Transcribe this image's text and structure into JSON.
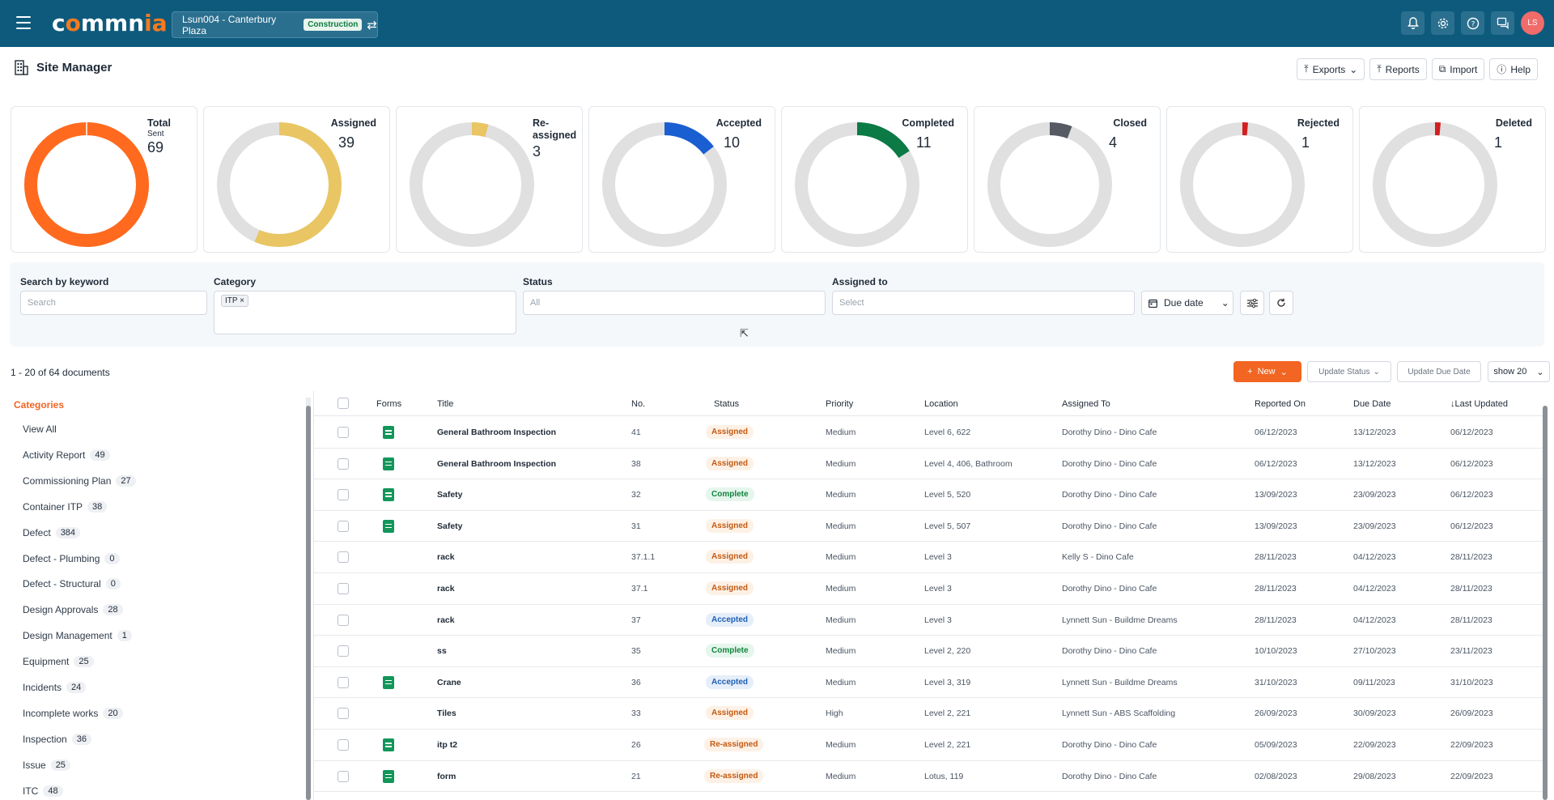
{
  "header": {
    "logo_text": "commnia",
    "project": "Lsun004 - Canterbury Plaza",
    "project_badge": "Construction",
    "avatar_initials": "LS"
  },
  "page": {
    "title": "Site Manager",
    "actions": {
      "exports": "Exports",
      "reports": "Reports",
      "import": "Import",
      "help": "Help"
    }
  },
  "stats": [
    {
      "label": "Total",
      "sub": "Sent",
      "value": "69",
      "fraction": 1.0,
      "color": "#ff6a1f"
    },
    {
      "label": "Assigned",
      "value": "39",
      "fraction": 0.565,
      "color": "#e9c663"
    },
    {
      "label": "Re-assigned",
      "value": "3",
      "fraction": 0.043,
      "color": "#e9c663"
    },
    {
      "label": "Accepted",
      "value": "10",
      "fraction": 0.145,
      "color": "#1a5fd1"
    },
    {
      "label": "Completed",
      "value": "11",
      "fraction": 0.159,
      "color": "#0c7a45"
    },
    {
      "label": "Closed",
      "value": "4",
      "fraction": 0.058,
      "color": "#555a63"
    },
    {
      "label": "Rejected",
      "value": "1",
      "fraction": 0.0145,
      "color": "#d21f1f"
    },
    {
      "label": "Deleted",
      "value": "1",
      "fraction": 0.0145,
      "color": "#d21f1f"
    }
  ],
  "filters": {
    "keyword_label": "Search by keyword",
    "keyword_placeholder": "Search",
    "category_label": "Category",
    "category_chip": "ITP",
    "status_label": "Status",
    "status_placeholder": "All",
    "assigned_label": "Assigned to",
    "assigned_placeholder": "Select",
    "due_date": "Due date"
  },
  "toolbar": {
    "doc_count": "1 - 20 of 64 documents",
    "new": "New",
    "update_status": "Update Status",
    "update_due": "Update Due Date",
    "show": "show 20"
  },
  "categories": {
    "heading": "Categories",
    "items": [
      {
        "name": "View All",
        "count": ""
      },
      {
        "name": "Activity Report",
        "count": "49"
      },
      {
        "name": "Commissioning Plan",
        "count": "27"
      },
      {
        "name": "Container ITP",
        "count": "38"
      },
      {
        "name": "Defect",
        "count": "384"
      },
      {
        "name": "Defect - Plumbing",
        "count": "0"
      },
      {
        "name": "Defect - Structural",
        "count": "0"
      },
      {
        "name": "Design Approvals",
        "count": "28"
      },
      {
        "name": "Design Management",
        "count": "1"
      },
      {
        "name": "Equipment",
        "count": "25"
      },
      {
        "name": "Incidents",
        "count": "24"
      },
      {
        "name": "Incomplete works",
        "count": "20"
      },
      {
        "name": "Inspection",
        "count": "36"
      },
      {
        "name": "Issue",
        "count": "25"
      },
      {
        "name": "ITC",
        "count": "48"
      }
    ]
  },
  "table": {
    "columns": [
      "Forms",
      "Title",
      "No.",
      "Status",
      "Priority",
      "Location",
      "Assigned To",
      "Reported On",
      "Due Date",
      "↓Last Updated"
    ],
    "rows": [
      {
        "form": true,
        "title": "General Bathroom Inspection",
        "no": "41",
        "status": "Assigned",
        "priority": "Medium",
        "location": "Level 6, 622",
        "assigned": "Dorothy Dino - Dino Cafe",
        "reported": "06/12/2023",
        "due": "13/12/2023",
        "updated": "06/12/2023"
      },
      {
        "form": true,
        "title": "General Bathroom Inspection",
        "no": "38",
        "status": "Assigned",
        "priority": "Medium",
        "location": "Level 4, 406, Bathroom",
        "assigned": "Dorothy Dino - Dino Cafe",
        "reported": "06/12/2023",
        "due": "13/12/2023",
        "updated": "06/12/2023"
      },
      {
        "form": true,
        "title": "Safety",
        "no": "32",
        "status": "Complete",
        "priority": "Medium",
        "location": "Level 5, 520",
        "assigned": "Dorothy Dino - Dino Cafe",
        "reported": "13/09/2023",
        "due": "23/09/2023",
        "updated": "06/12/2023"
      },
      {
        "form": true,
        "title": "Safety",
        "no": "31",
        "status": "Assigned",
        "priority": "Medium",
        "location": "Level 5, 507",
        "assigned": "Dorothy Dino - Dino Cafe",
        "reported": "13/09/2023",
        "due": "23/09/2023",
        "updated": "06/12/2023"
      },
      {
        "form": false,
        "title": "rack",
        "no": "37.1.1",
        "status": "Assigned",
        "priority": "Medium",
        "location": "Level 3",
        "assigned": "Kelly S - Dino Cafe",
        "reported": "28/11/2023",
        "due": "04/12/2023",
        "updated": "28/11/2023"
      },
      {
        "form": false,
        "title": "rack",
        "no": "37.1",
        "status": "Assigned",
        "priority": "Medium",
        "location": "Level 3",
        "assigned": "Dorothy Dino - Dino Cafe",
        "reported": "28/11/2023",
        "due": "04/12/2023",
        "updated": "28/11/2023"
      },
      {
        "form": false,
        "title": "rack",
        "no": "37",
        "status": "Accepted",
        "priority": "Medium",
        "location": "Level 3",
        "assigned": "Lynnett Sun - Buildme Dreams",
        "reported": "28/11/2023",
        "due": "04/12/2023",
        "updated": "28/11/2023"
      },
      {
        "form": false,
        "title": "ss",
        "no": "35",
        "status": "Complete",
        "priority": "Medium",
        "location": "Level 2, 220",
        "assigned": "Dorothy Dino - Dino Cafe",
        "reported": "10/10/2023",
        "due": "27/10/2023",
        "updated": "23/11/2023"
      },
      {
        "form": true,
        "title": "Crane",
        "no": "36",
        "status": "Accepted",
        "priority": "Medium",
        "location": "Level 3, 319",
        "assigned": "Lynnett Sun - Buildme Dreams",
        "reported": "31/10/2023",
        "due": "09/11/2023",
        "updated": "31/10/2023"
      },
      {
        "form": false,
        "title": "Tiles",
        "no": "33",
        "status": "Assigned",
        "priority": "High",
        "location": "Level 2, 221",
        "assigned": "Lynnett Sun - ABS Scaffolding",
        "reported": "26/09/2023",
        "due": "30/09/2023",
        "updated": "26/09/2023"
      },
      {
        "form": true,
        "title": "itp t2",
        "no": "26",
        "status": "Re-assigned",
        "priority": "Medium",
        "location": "Level 2, 221",
        "assigned": "Dorothy Dino - Dino Cafe",
        "reported": "05/09/2023",
        "due": "22/09/2023",
        "updated": "22/09/2023"
      },
      {
        "form": true,
        "title": "form",
        "no": "21",
        "status": "Re-assigned",
        "priority": "Medium",
        "location": "Lotus, 119",
        "assigned": "Dorothy Dino - Dino Cafe",
        "reported": "02/08/2023",
        "due": "29/08/2023",
        "updated": "22/09/2023"
      }
    ]
  }
}
